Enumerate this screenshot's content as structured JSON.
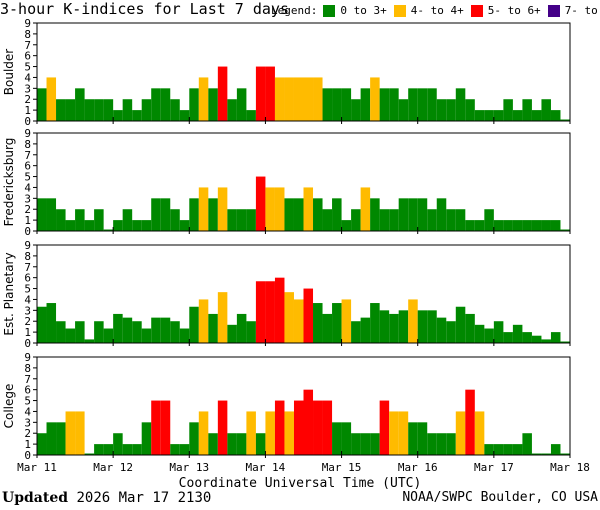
{
  "title": "3-hour K-indices for Last 7 days",
  "legend": {
    "label": "Legend:",
    "items": [
      {
        "label": "0 to 3+",
        "color": "#008800"
      },
      {
        "label": "4- to 4+",
        "color": "#ffbb00"
      },
      {
        "label": "5- to 6+",
        "color": "#ff0000"
      },
      {
        "label": "7- to 9",
        "color": "#440088"
      }
    ]
  },
  "footer": {
    "updated_label": "Updated",
    "updated_value": "2026 Mar 17 2130",
    "source": "NOAA/SWPC Boulder, CO USA"
  },
  "chart_data": {
    "type": "bar",
    "xlabel": "Coordinate Universal Time (UTC)",
    "ylim": [
      0,
      9
    ],
    "yticks": [
      0,
      1,
      2,
      3,
      4,
      5,
      6,
      7,
      8,
      9
    ],
    "xticks": [
      "Mar 11",
      "Mar 12",
      "Mar 13",
      "Mar 14",
      "Mar 15",
      "Mar 16",
      "Mar 17",
      "Mar 18"
    ],
    "bins_per_day": 8,
    "total_bins": 56,
    "color_thresholds": {
      "green_below": 4,
      "yellow_below": 5,
      "red_below": 7
    },
    "panels": [
      {
        "name": "Boulder",
        "values": [
          3,
          4,
          2,
          2,
          3,
          2,
          2,
          2,
          1,
          2,
          1,
          2,
          3,
          3,
          2,
          1,
          3,
          4,
          3,
          5,
          2,
          3,
          1,
          5,
          5,
          4,
          4,
          4,
          4,
          4,
          3,
          3,
          3,
          2,
          3,
          4,
          3,
          3,
          2,
          3,
          3,
          3,
          2,
          2,
          3,
          2,
          1,
          1,
          1,
          2,
          1,
          2,
          1,
          2,
          1,
          0
        ]
      },
      {
        "name": "Fredericksburg",
        "values": [
          3,
          3,
          2,
          1,
          2,
          1,
          2,
          0,
          1,
          2,
          1,
          1,
          3,
          3,
          2,
          1,
          3,
          4,
          3,
          4,
          2,
          2,
          2,
          5,
          4,
          4,
          3,
          3,
          4,
          3,
          2,
          3,
          1,
          2,
          4,
          3,
          2,
          2,
          3,
          3,
          3,
          2,
          3,
          2,
          2,
          1,
          1,
          2,
          1,
          1,
          1,
          1,
          1,
          1,
          1,
          0
        ]
      },
      {
        "name": "Est. Planetary",
        "values": [
          3.33,
          3.67,
          2,
          1.33,
          2,
          0.33,
          2,
          1.33,
          2.67,
          2.33,
          2,
          1.33,
          2.33,
          2.33,
          2,
          1.33,
          3.33,
          4,
          2.67,
          4.67,
          1.67,
          2.67,
          2,
          5.67,
          5.67,
          6,
          4.67,
          4,
          5,
          3.67,
          2.67,
          3.67,
          4,
          2,
          2.33,
          3.67,
          3,
          2.67,
          3,
          4,
          3,
          3,
          2.33,
          2,
          3.33,
          2.67,
          1.67,
          1.33,
          2,
          1,
          1.67,
          1,
          0.67,
          0.33,
          1,
          0
        ]
      },
      {
        "name": "College",
        "values": [
          2,
          3,
          3,
          4,
          4,
          0,
          1,
          1,
          2,
          1,
          1,
          3,
          5,
          5,
          1,
          1,
          3,
          4,
          2,
          5,
          2,
          2,
          4,
          2,
          4,
          5,
          4,
          5,
          6,
          5,
          5,
          3,
          3,
          2,
          2,
          2,
          5,
          4,
          4,
          3,
          3,
          2,
          2,
          2,
          4,
          6,
          4,
          1,
          1,
          1,
          1,
          2,
          0,
          0,
          1,
          0
        ]
      }
    ]
  }
}
